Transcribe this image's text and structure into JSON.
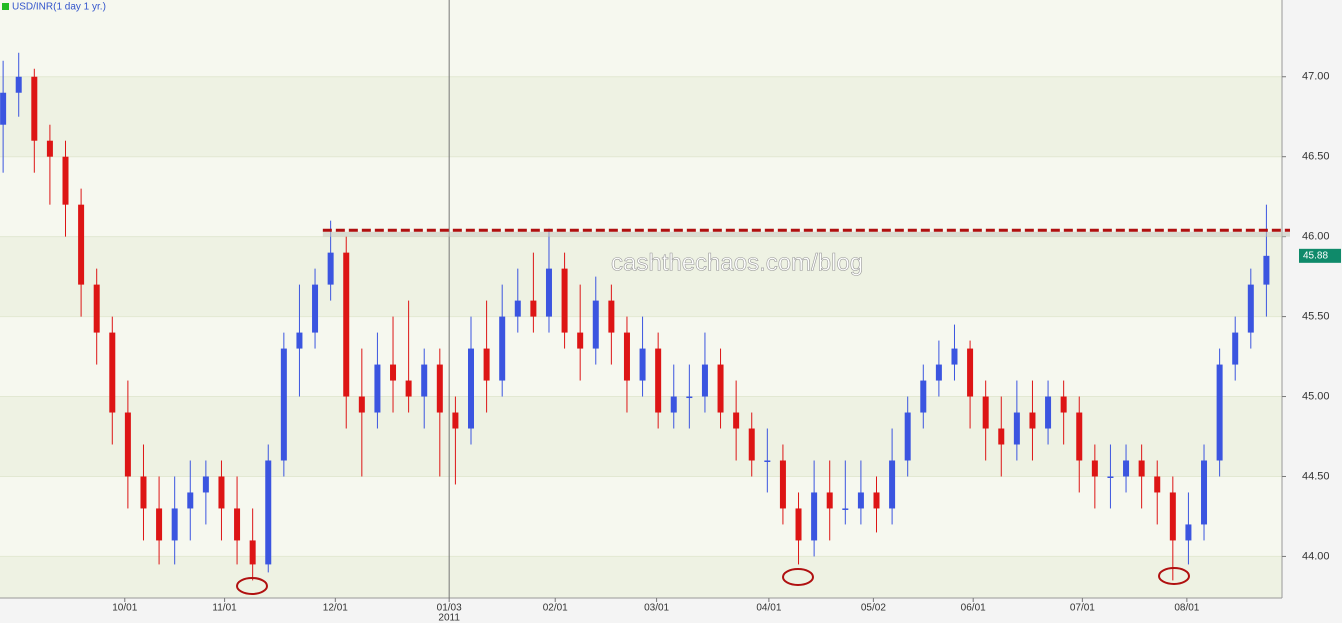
{
  "chart_data": {
    "type": "candlestick",
    "title": "USD/INR(1 day  1 yr.)",
    "watermark": "cashthechaos.com/blog",
    "up_color": "#3b55e0",
    "down_color": "#dd1515",
    "grid": true,
    "ylim": [
      43.74,
      47.48
    ],
    "yticks": [
      {
        "value": 44,
        "label": "44.00"
      },
      {
        "value": 44.5,
        "label": "44.50"
      },
      {
        "value": 45,
        "label": "45.00"
      },
      {
        "value": 45.5,
        "label": "45.50"
      },
      {
        "value": 46,
        "label": "46.00"
      },
      {
        "value": 46.5,
        "label": "46.50"
      },
      {
        "value": 47,
        "label": "47.00"
      }
    ],
    "xlim": [
      -0.2,
      82
    ],
    "xticks": [
      {
        "value": 7.8,
        "label": "10/01"
      },
      {
        "value": 14.2,
        "label": "11/01"
      },
      {
        "value": 21.3,
        "label": "12/01"
      },
      {
        "value": 28.6,
        "label": "01/03",
        "year": "2011"
      },
      {
        "value": 35.4,
        "label": "02/01"
      },
      {
        "value": 41.9,
        "label": "03/01"
      },
      {
        "value": 49.1,
        "label": "04/01"
      },
      {
        "value": 55.8,
        "label": "05/02"
      },
      {
        "value": 62.2,
        "label": "06/01"
      },
      {
        "value": 69.2,
        "label": "07/01"
      },
      {
        "value": 75.9,
        "label": "08/01"
      }
    ],
    "resistance": {
      "value": 46.04,
      "x_start": 20.5,
      "color": "#b01010"
    },
    "series": [
      {
        "name": "USD/INR",
        "x": [
          0,
          1,
          2,
          3,
          4,
          5,
          6,
          7,
          8,
          9,
          10,
          11,
          12,
          13,
          14,
          15,
          16,
          17,
          18,
          19,
          20,
          21,
          22,
          23,
          24,
          25,
          26,
          27,
          28,
          29,
          30,
          31,
          32,
          33,
          34,
          35,
          36,
          37,
          38,
          39,
          40,
          41,
          42,
          43,
          44,
          45,
          46,
          47,
          48,
          49,
          50,
          51,
          52,
          53,
          54,
          55,
          56,
          57,
          58,
          59,
          60,
          61,
          62,
          63,
          64,
          65,
          66,
          67,
          68,
          69,
          70,
          71,
          72,
          73,
          74,
          75,
          76,
          77,
          78,
          79,
          80,
          81
        ],
        "open": [
          46.7,
          46.9,
          47.0,
          46.6,
          46.5,
          46.2,
          45.7,
          45.4,
          44.9,
          44.5,
          44.3,
          44.1,
          44.3,
          44.4,
          44.5,
          44.3,
          44.1,
          43.95,
          44.6,
          45.3,
          45.4,
          45.7,
          45.9,
          45.0,
          44.9,
          45.2,
          45.1,
          45.0,
          45.2,
          44.9,
          44.8,
          45.3,
          45.1,
          45.5,
          45.6,
          45.5,
          45.8,
          45.4,
          45.3,
          45.6,
          45.4,
          45.1,
          45.3,
          44.9,
          45.0,
          45.0,
          45.2,
          44.9,
          44.8,
          44.6,
          44.6,
          44.3,
          44.1,
          44.4,
          44.3,
          44.3,
          44.4,
          44.3,
          44.6,
          44.9,
          45.1,
          45.2,
          45.3,
          45.0,
          44.8,
          44.7,
          44.9,
          44.8,
          45.0,
          44.9,
          44.6,
          44.5,
          44.5,
          44.6,
          44.5,
          44.4,
          44.1,
          44.2,
          44.6,
          45.2,
          45.4,
          45.7
        ],
        "high": [
          47.1,
          47.15,
          47.05,
          46.7,
          46.6,
          46.3,
          45.8,
          45.5,
          45.1,
          44.7,
          44.5,
          44.5,
          44.6,
          44.6,
          44.6,
          44.5,
          44.3,
          44.7,
          45.4,
          45.7,
          45.8,
          46.1,
          46.0,
          45.3,
          45.4,
          45.5,
          45.6,
          45.3,
          45.3,
          45.0,
          45.5,
          45.6,
          45.7,
          45.8,
          45.9,
          46.05,
          45.9,
          45.7,
          45.75,
          45.7,
          45.5,
          45.5,
          45.4,
          45.2,
          45.2,
          45.4,
          45.3,
          45.1,
          44.9,
          44.8,
          44.7,
          44.4,
          44.6,
          44.6,
          44.6,
          44.6,
          44.5,
          44.8,
          45.0,
          45.2,
          45.35,
          45.45,
          45.35,
          45.1,
          45.0,
          45.1,
          45.1,
          45.1,
          45.1,
          45.0,
          44.7,
          44.7,
          44.7,
          44.7,
          44.6,
          44.5,
          44.4,
          44.7,
          45.3,
          45.5,
          45.8,
          46.2
        ],
        "low": [
          46.4,
          46.75,
          46.4,
          46.2,
          46.0,
          45.5,
          45.2,
          44.7,
          44.3,
          44.1,
          43.95,
          43.95,
          44.1,
          44.2,
          44.1,
          43.95,
          43.85,
          43.9,
          44.5,
          45.0,
          45.3,
          45.6,
          44.8,
          44.5,
          44.8,
          44.9,
          44.9,
          44.8,
          44.5,
          44.45,
          44.7,
          44.9,
          45.0,
          45.4,
          45.4,
          45.4,
          45.3,
          45.1,
          45.2,
          45.2,
          44.9,
          45.0,
          44.8,
          44.8,
          44.8,
          44.9,
          44.8,
          44.6,
          44.5,
          44.4,
          44.2,
          43.95,
          44.0,
          44.1,
          44.2,
          44.2,
          44.15,
          44.2,
          44.5,
          44.8,
          45.0,
          45.1,
          44.8,
          44.6,
          44.5,
          44.6,
          44.6,
          44.7,
          44.7,
          44.4,
          44.3,
          44.3,
          44.4,
          44.3,
          44.2,
          43.85,
          43.95,
          44.1,
          44.5,
          45.1,
          45.3,
          45.5
        ],
        "close": [
          46.9,
          47.0,
          46.6,
          46.5,
          46.2,
          45.7,
          45.4,
          44.9,
          44.5,
          44.3,
          44.1,
          44.3,
          44.4,
          44.5,
          44.3,
          44.1,
          43.95,
          44.6,
          45.3,
          45.4,
          45.7,
          45.9,
          45.0,
          44.9,
          45.2,
          45.1,
          45.0,
          45.2,
          44.9,
          44.8,
          45.3,
          45.1,
          45.5,
          45.6,
          45.5,
          45.8,
          45.4,
          45.3,
          45.6,
          45.4,
          45.1,
          45.3,
          44.9,
          45.0,
          45.0,
          45.2,
          44.9,
          44.8,
          44.6,
          44.6,
          44.3,
          44.1,
          44.4,
          44.3,
          44.3,
          44.4,
          44.3,
          44.6,
          44.9,
          45.1,
          45.2,
          45.3,
          45.0,
          44.8,
          44.7,
          44.9,
          44.8,
          45.0,
          44.9,
          44.6,
          44.5,
          44.5,
          44.6,
          44.5,
          44.4,
          44.1,
          44.2,
          44.6,
          45.2,
          45.4,
          45.7,
          45.88
        ]
      }
    ]
  }
}
